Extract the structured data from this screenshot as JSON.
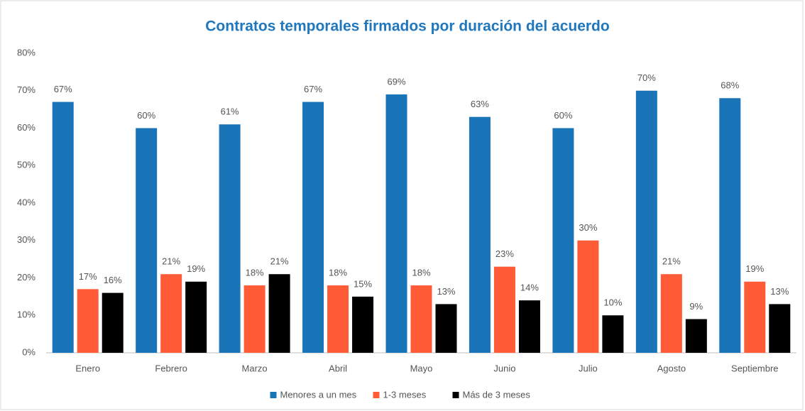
{
  "chart_data": {
    "type": "bar",
    "title": "Contratos temporales firmados por duración del acuerdo",
    "categories": [
      "Enero",
      "Febrero",
      "Marzo",
      "Abril",
      "Mayo",
      "Junio",
      "Julio",
      "Agosto",
      "Septiembre"
    ],
    "series": [
      {
        "name": "Menores a un mes",
        "color": "#1a75b8",
        "values": [
          67,
          60,
          61,
          67,
          69,
          63,
          60,
          70,
          68
        ],
        "value_labels": [
          "67%",
          "60%",
          "61%",
          "67%",
          "69%",
          "63%",
          "60%",
          "70%",
          "68%"
        ]
      },
      {
        "name": "1-3 meses",
        "color": "#ff5b36",
        "values": [
          17,
          21,
          18,
          18,
          18,
          23,
          30,
          21,
          19
        ],
        "value_labels": [
          "17%",
          "21%",
          "18%",
          "18%",
          "18%",
          "23%",
          "30%",
          "21%",
          "19%"
        ]
      },
      {
        "name": "Más de 3 meses",
        "color": "#000000",
        "values": [
          16,
          19,
          21,
          15,
          13,
          14,
          10,
          9,
          13
        ],
        "value_labels": [
          "16%",
          "19%",
          "21%",
          "15%",
          "13%",
          "14%",
          "10%",
          "9%",
          "13%"
        ]
      }
    ],
    "ylim": [
      0,
      80
    ],
    "yticks": [
      {
        "value": 0,
        "label": "0%"
      },
      {
        "value": 10,
        "label": "10%"
      },
      {
        "value": 20,
        "label": "20%"
      },
      {
        "value": 30,
        "label": "30%"
      },
      {
        "value": 40,
        "label": "40%"
      },
      {
        "value": 50,
        "label": "50%"
      },
      {
        "value": 60,
        "label": "60%"
      },
      {
        "value": 70,
        "label": "70%"
      },
      {
        "value": 80,
        "label": "80%"
      }
    ],
    "grid": false,
    "legend": "bottom"
  }
}
